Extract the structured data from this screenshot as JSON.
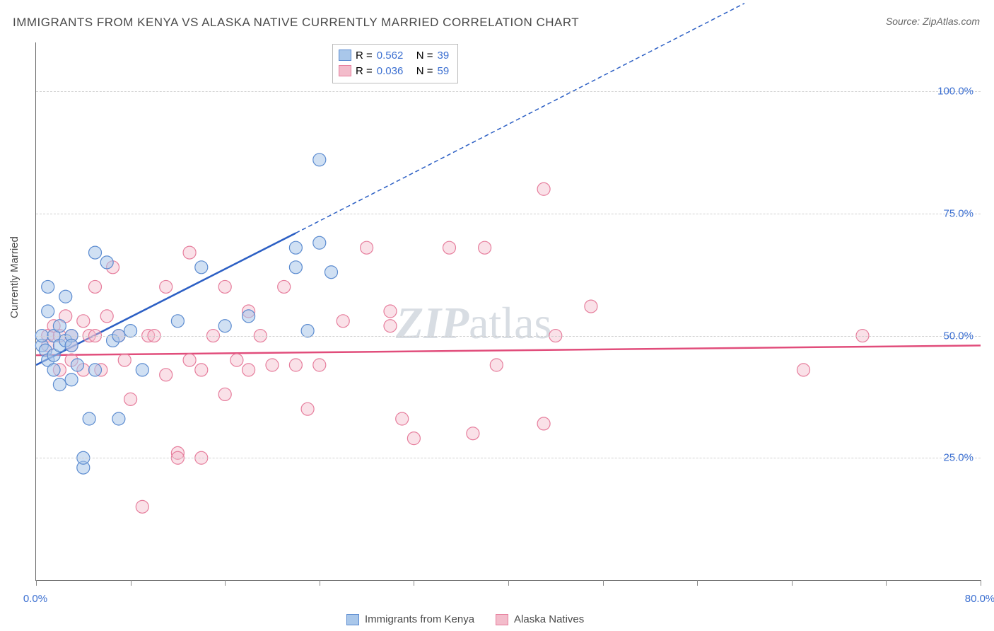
{
  "title": "IMMIGRANTS FROM KENYA VS ALASKA NATIVE CURRENTLY MARRIED CORRELATION CHART",
  "source": "Source: ZipAtlas.com",
  "watermark": "ZIPatlas",
  "y_axis_label": "Currently Married",
  "chart": {
    "type": "scatter",
    "background_color": "#ffffff",
    "grid_color": "#d0d0d0",
    "axis_color": "#666666",
    "tick_label_color": "#3b6fd1",
    "axis_label_color": "#4a4a4a",
    "xlim": [
      0,
      80
    ],
    "ylim": [
      0,
      110
    ],
    "y_ticks": [
      25,
      50,
      75,
      100
    ],
    "y_tick_labels": [
      "25.0%",
      "50.0%",
      "75.0%",
      "100.0%"
    ],
    "x_ticks": [
      0,
      8,
      16,
      24,
      32,
      40,
      48,
      56,
      64,
      72,
      80
    ],
    "x_tick_labels": {
      "0": "0.0%",
      "80": "80.0%"
    },
    "marker_radius": 9,
    "marker_stroke_width": 1.2,
    "trend_line_width": 2.5,
    "trend_dash": "6,4",
    "series": [
      {
        "name": "Immigrants from Kenya",
        "key": "kenya",
        "fill": "#a9c7ea",
        "stroke": "#5b8bd0",
        "fill_opacity": 0.55,
        "trend_color": "#2c5fc4",
        "trend": {
          "x1": 0,
          "y1": 44,
          "x2_solid": 22,
          "y2_solid": 71,
          "x2_dash": 60,
          "y2_dash": 118
        },
        "points": [
          [
            0.5,
            48
          ],
          [
            0.5,
            50
          ],
          [
            0.8,
            47
          ],
          [
            1,
            55
          ],
          [
            1,
            45
          ],
          [
            1,
            60
          ],
          [
            1.5,
            50
          ],
          [
            1.5,
            46
          ],
          [
            1.5,
            43
          ],
          [
            2,
            52
          ],
          [
            2,
            48
          ],
          [
            2,
            40
          ],
          [
            2.5,
            49
          ],
          [
            2.5,
            58
          ],
          [
            3,
            50
          ],
          [
            3,
            41
          ],
          [
            3,
            48
          ],
          [
            3.5,
            44
          ],
          [
            4,
            23
          ],
          [
            4,
            25
          ],
          [
            4.5,
            33
          ],
          [
            5,
            43
          ],
          [
            5,
            67
          ],
          [
            6,
            65
          ],
          [
            6.5,
            49
          ],
          [
            7,
            33
          ],
          [
            7,
            50
          ],
          [
            8,
            51
          ],
          [
            9,
            43
          ],
          [
            12,
            53
          ],
          [
            14,
            64
          ],
          [
            16,
            52
          ],
          [
            18,
            54
          ],
          [
            22,
            68
          ],
          [
            22,
            64
          ],
          [
            23,
            51
          ],
          [
            24,
            86
          ],
          [
            24,
            69
          ],
          [
            25,
            63
          ]
        ],
        "R": "0.562",
        "N": "39"
      },
      {
        "name": "Alaska Natives",
        "key": "alaska",
        "fill": "#f3bccb",
        "stroke": "#e67d9c",
        "fill_opacity": 0.45,
        "trend_color": "#e14d7b",
        "trend": {
          "x1": 0,
          "y1": 46,
          "x2_solid": 80,
          "y2_solid": 48,
          "x2_dash": 80,
          "y2_dash": 48
        },
        "points": [
          [
            1,
            50
          ],
          [
            1,
            48
          ],
          [
            1.5,
            52
          ],
          [
            2,
            50
          ],
          [
            2,
            43
          ],
          [
            2.5,
            54
          ],
          [
            3,
            50
          ],
          [
            3,
            45
          ],
          [
            3,
            48
          ],
          [
            4,
            53
          ],
          [
            4,
            43
          ],
          [
            4.5,
            50
          ],
          [
            5,
            60
          ],
          [
            5,
            50
          ],
          [
            5.5,
            43
          ],
          [
            6,
            54
          ],
          [
            6.5,
            64
          ],
          [
            7,
            50
          ],
          [
            7.5,
            45
          ],
          [
            8,
            37
          ],
          [
            9,
            15
          ],
          [
            9.5,
            50
          ],
          [
            10,
            50
          ],
          [
            11,
            60
          ],
          [
            11,
            42
          ],
          [
            12,
            26
          ],
          [
            12,
            25
          ],
          [
            13,
            67
          ],
          [
            13,
            45
          ],
          [
            14,
            43
          ],
          [
            14,
            25
          ],
          [
            15,
            50
          ],
          [
            16,
            38
          ],
          [
            16,
            60
          ],
          [
            17,
            45
          ],
          [
            18,
            55
          ],
          [
            18,
            43
          ],
          [
            19,
            50
          ],
          [
            20,
            44
          ],
          [
            21,
            60
          ],
          [
            22,
            44
          ],
          [
            23,
            35
          ],
          [
            24,
            44
          ],
          [
            26,
            53
          ],
          [
            28,
            68
          ],
          [
            30,
            55
          ],
          [
            31,
            33
          ],
          [
            32,
            29
          ],
          [
            35,
            68
          ],
          [
            37,
            30
          ],
          [
            38,
            68
          ],
          [
            39,
            44
          ],
          [
            43,
            80
          ],
          [
            43,
            32
          ],
          [
            44,
            50
          ],
          [
            47,
            56
          ],
          [
            65,
            43
          ],
          [
            70,
            50
          ],
          [
            30,
            52
          ]
        ],
        "R": "0.036",
        "N": "59"
      }
    ]
  },
  "legend_top": {
    "r_label": "R =",
    "n_label": "N ="
  },
  "legend_bottom": [
    {
      "label": "Immigrants from Kenya",
      "fill": "#a9c7ea",
      "stroke": "#5b8bd0"
    },
    {
      "label": "Alaska Natives",
      "fill": "#f3bccb",
      "stroke": "#e67d9c"
    }
  ]
}
